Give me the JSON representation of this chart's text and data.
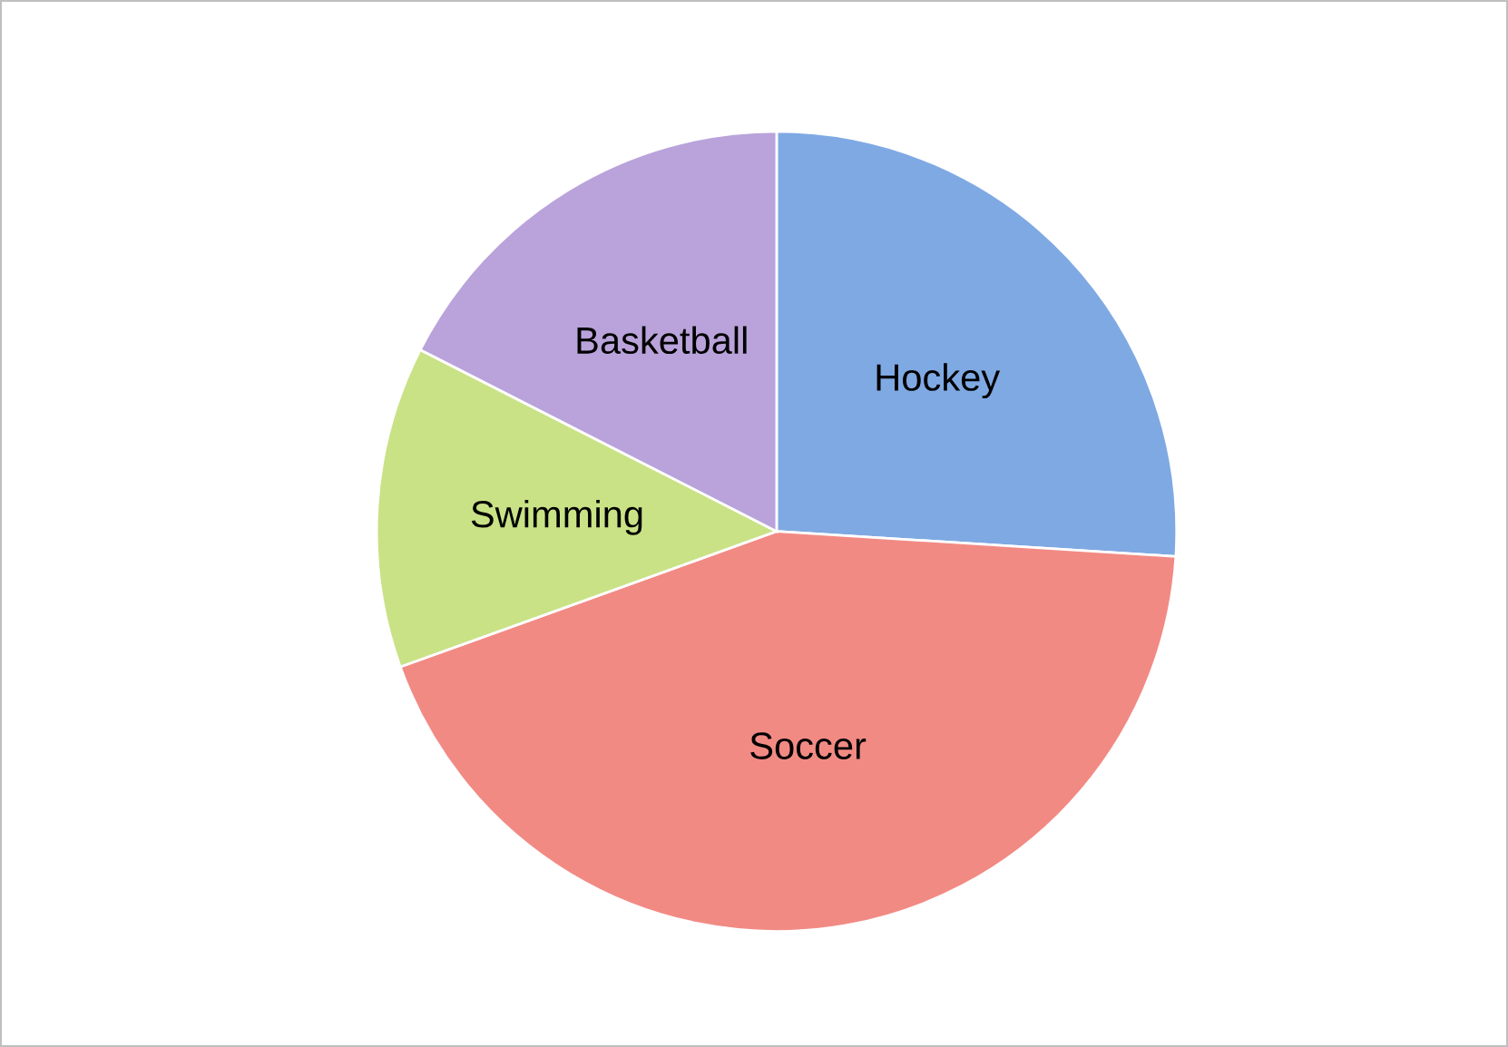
{
  "chart_data": {
    "type": "pie",
    "categories": [
      "Hockey",
      "Soccer",
      "Swimming",
      "Basketball"
    ],
    "values": [
      26,
      43.5,
      13,
      17.5
    ],
    "colors": [
      "#7fa9e3",
      "#f28a84",
      "#c9e286",
      "#b9a3da"
    ]
  }
}
